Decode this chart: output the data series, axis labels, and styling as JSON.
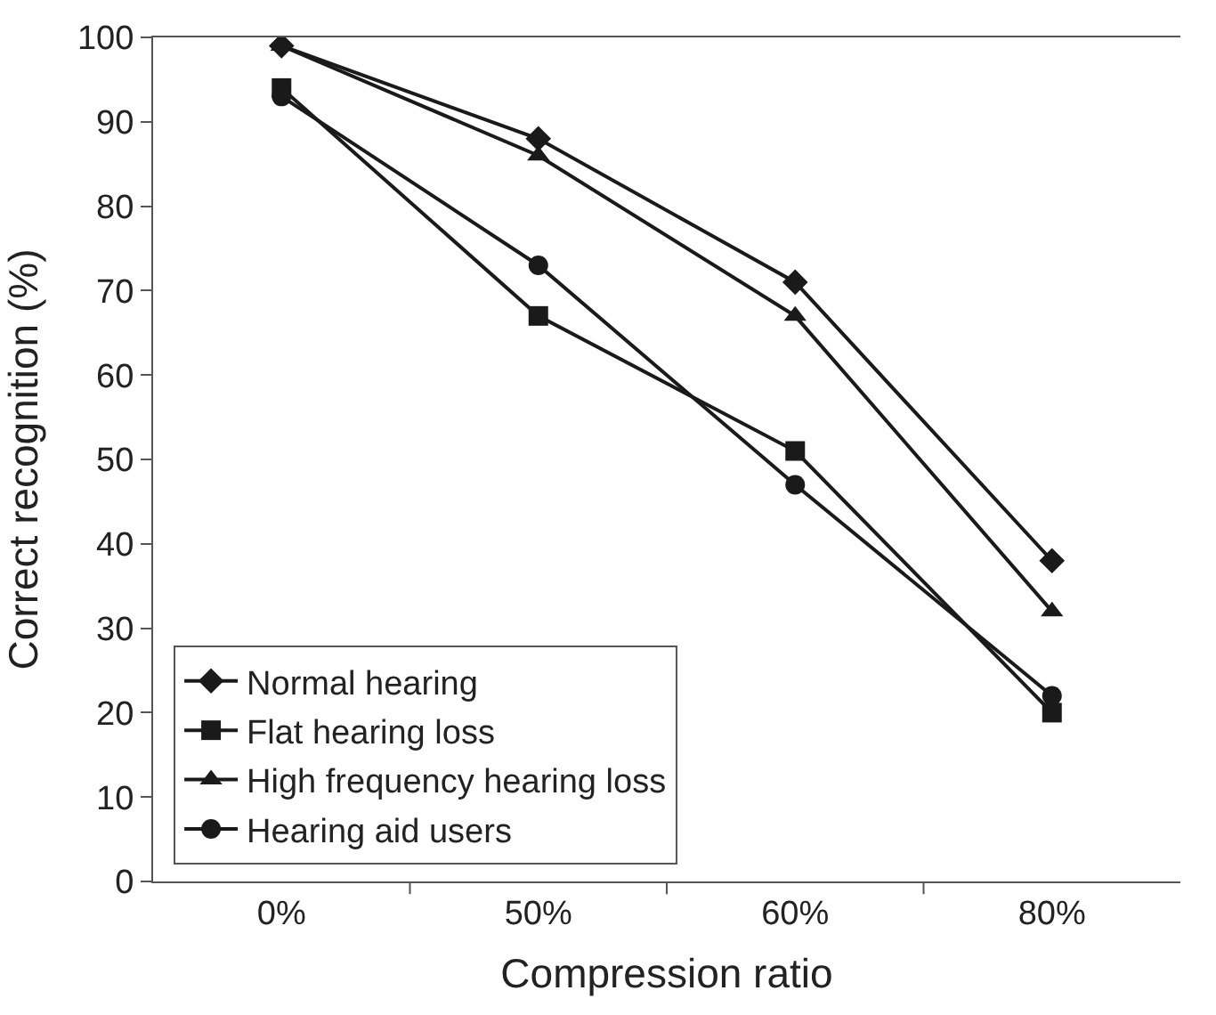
{
  "chart_data": {
    "type": "line",
    "xlabel": "Compression ratio",
    "ylabel": "Correct recognition (%)",
    "categories": [
      "0%",
      "50%",
      "60%",
      "80%"
    ],
    "series": [
      {
        "name": "Normal hearing",
        "color": "#1a1a1a",
        "marker": "diamond",
        "values": [
          99,
          88,
          71,
          38
        ]
      },
      {
        "name": "Flat hearing loss",
        "color": "#1a1a1a",
        "marker": "square",
        "values": [
          94,
          67,
          51,
          20
        ]
      },
      {
        "name": "High frequency hearing loss",
        "color": "#1a1a1a",
        "marker": "triangle",
        "values": [
          99,
          86,
          67,
          32
        ]
      },
      {
        "name": "Hearing aid users",
        "color": "#1a1a1a",
        "marker": "circle",
        "values": [
          93,
          73,
          47,
          22
        ]
      }
    ],
    "ylim": [
      0,
      100
    ],
    "yticks": [
      0,
      10,
      20,
      30,
      40,
      50,
      60,
      70,
      80,
      90,
      100
    ],
    "legend": "bottom left",
    "line_style": "solid"
  }
}
